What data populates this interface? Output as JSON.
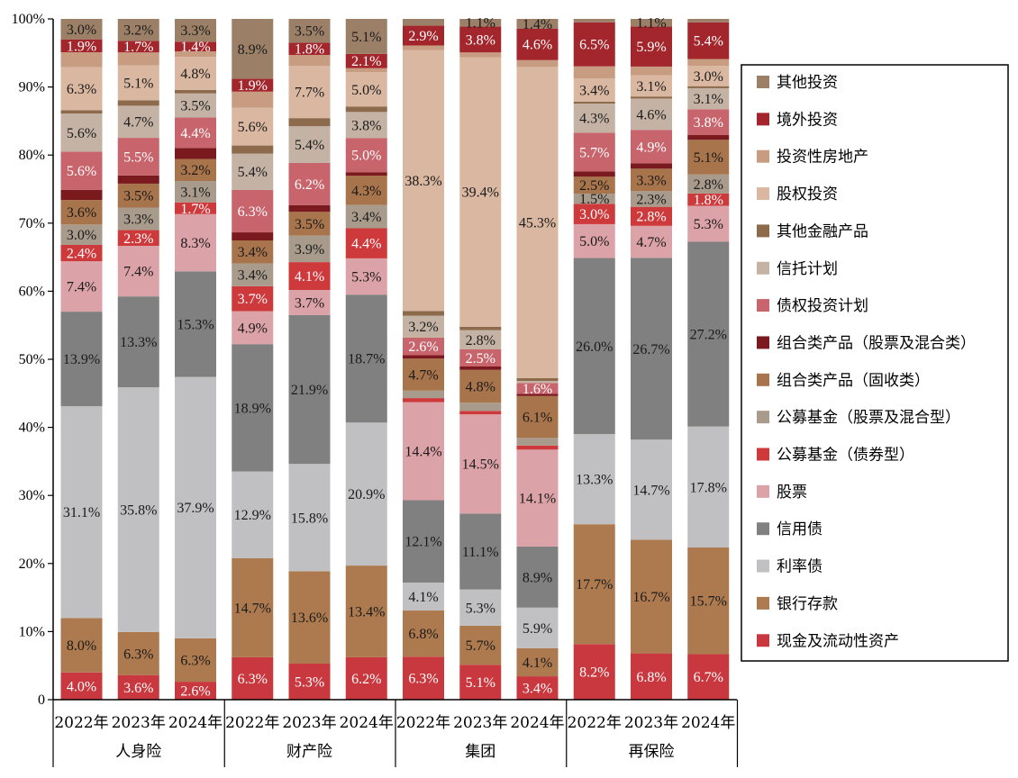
{
  "chart_data": {
    "type": "stacked-bar-100",
    "y_ticks": [
      "0",
      "10%",
      "20%",
      "30%",
      "40%",
      "50%",
      "60%",
      "70%",
      "80%",
      "90%",
      "100%"
    ],
    "ylim": [
      0,
      100
    ],
    "groups": [
      {
        "name": "人身险",
        "years": [
          "2022年",
          "2023年",
          "2024年"
        ]
      },
      {
        "name": "财产险",
        "years": [
          "2022年",
          "2023年",
          "2024年"
        ]
      },
      {
        "name": "集团",
        "years": [
          "2022年",
          "2023年",
          "2024年"
        ]
      },
      {
        "name": "再保险",
        "years": [
          "2022年",
          "2023年",
          "2024年"
        ]
      }
    ],
    "legend_position": "right",
    "series": [
      {
        "name": "现金及流动性资产",
        "color": "#C8383E",
        "values": [
          4.0,
          3.6,
          2.6,
          6.3,
          5.3,
          6.2,
          6.3,
          5.1,
          3.4,
          8.2,
          6.8,
          6.7
        ],
        "labels": [
          "4.0%",
          "3.6%",
          "2.6%",
          "6.3%",
          "5.3%",
          "6.2%",
          "6.3%",
          "5.1%",
          "3.4%",
          "8.2%",
          "6.8%",
          "6.7%"
        ]
      },
      {
        "name": "银行存款",
        "color": "#AD7A4F",
        "values": [
          8.0,
          6.3,
          6.3,
          14.7,
          13.6,
          13.4,
          6.8,
          5.7,
          4.1,
          17.7,
          16.7,
          15.7
        ],
        "labels": [
          "8.0%",
          "6.3%",
          "6.3%",
          "14.7%",
          "13.6%",
          "13.4%",
          "6.8%",
          "5.7%",
          "4.1%",
          "17.7%",
          "16.7%",
          "15.7%"
        ]
      },
      {
        "name": "利率债",
        "color": "#C0C0C2",
        "values": [
          31.1,
          35.8,
          37.9,
          12.9,
          15.8,
          20.9,
          4.1,
          5.3,
          5.9,
          13.3,
          14.7,
          17.8
        ],
        "labels": [
          "31.1%",
          "35.8%",
          "37.9%",
          "12.9%",
          "15.8%",
          "20.9%",
          "4.1%",
          "5.3%",
          "5.9%",
          "13.3%",
          "14.7%",
          "17.8%"
        ]
      },
      {
        "name": "信用债",
        "color": "#808080",
        "values": [
          13.9,
          13.3,
          15.3,
          18.9,
          21.9,
          18.7,
          12.1,
          11.1,
          8.9,
          26.0,
          26.7,
          27.2
        ],
        "labels": [
          "13.9%",
          "13.3%",
          "15.3%",
          "18.9%",
          "21.9%",
          "18.7%",
          "12.1%",
          "11.1%",
          "8.9%",
          "26.0%",
          "26.7%",
          "27.2%"
        ]
      },
      {
        "name": "股票",
        "color": "#DBA2A7",
        "values": [
          7.4,
          7.4,
          8.3,
          4.9,
          3.7,
          5.3,
          14.4,
          14.5,
          14.1,
          5.0,
          4.7,
          5.3
        ],
        "labels": [
          "7.4%",
          "7.4%",
          "8.3%",
          "4.9%",
          "3.7%",
          "5.3%",
          "14.4%",
          "14.5%",
          "14.1%",
          "5.0%",
          "4.7%",
          "5.3%"
        ]
      },
      {
        "name": "公募基金（债券型）",
        "color": "#CE3A3C",
        "values": [
          2.4,
          2.3,
          1.7,
          3.7,
          4.1,
          4.4,
          0.6,
          0.5,
          0.6,
          3.0,
          2.8,
          1.8
        ],
        "labels": [
          "2.4%",
          "2.3%",
          "1.7%",
          "3.7%",
          "4.1%",
          "4.4%",
          "",
          "",
          "",
          "3.0%",
          "2.8%",
          "1.8%"
        ]
      },
      {
        "name": "公募基金（股票及混合型）",
        "color": "#A89B8C",
        "values": [
          3.0,
          3.3,
          3.1,
          3.4,
          3.9,
          3.4,
          1.1,
          1.2,
          1.1,
          1.5,
          2.3,
          2.8
        ],
        "labels": [
          "3.0%",
          "3.3%",
          "3.1%",
          "3.4%",
          "3.9%",
          "3.4%",
          "",
          "",
          "",
          "1.5%",
          "2.3%",
          "2.8%"
        ]
      },
      {
        "name": "组合类产品（固收类）",
        "color": "#A8744B",
        "values": [
          3.6,
          3.5,
          3.2,
          3.4,
          3.5,
          4.3,
          4.7,
          4.8,
          6.1,
          2.5,
          3.3,
          5.1
        ],
        "labels": [
          "3.6%",
          "3.5%",
          "3.2%",
          "3.4%",
          "3.5%",
          "4.3%",
          "4.7%",
          "4.8%",
          "6.1%",
          "2.5%",
          "3.3%",
          "5.1%"
        ]
      },
      {
        "name": "组合类产品（股票及混合类）",
        "color": "#7A1A1E",
        "values": [
          1.5,
          1.2,
          1.6,
          1.2,
          1.0,
          0.5,
          0.5,
          0.5,
          0.3,
          0.8,
          0.8,
          0.7
        ],
        "labels": [
          "",
          "",
          "",
          "",
          "",
          "",
          "",
          "",
          "",
          "",
          "",
          ""
        ]
      },
      {
        "name": "债权投资计划",
        "color": "#C7646C",
        "values": [
          5.6,
          5.5,
          4.4,
          6.3,
          6.2,
          5.0,
          2.6,
          2.5,
          1.6,
          5.7,
          4.9,
          3.8
        ],
        "labels": [
          "5.6%",
          "5.5%",
          "4.4%",
          "6.3%",
          "6.2%",
          "5.0%",
          "2.6%",
          "2.5%",
          "1.6%",
          "5.7%",
          "4.9%",
          "3.8%"
        ]
      },
      {
        "name": "信托计划",
        "color": "#C4B3A4",
        "values": [
          5.6,
          4.7,
          3.5,
          5.4,
          5.4,
          3.8,
          3.2,
          2.8,
          0.3,
          4.3,
          4.6,
          3.1
        ],
        "labels": [
          "5.6%",
          "4.7%",
          "3.5%",
          "5.4%",
          "5.4%",
          "3.8%",
          "3.2%",
          "2.8%",
          "",
          "4.3%",
          "4.6%",
          "3.1%"
        ]
      },
      {
        "name": "其他金融产品",
        "color": "#8E6A4C",
        "values": [
          0.5,
          0.8,
          0.5,
          1.2,
          1.2,
          0.8,
          0.7,
          0.5,
          0.4,
          0.3,
          0.3,
          0.3
        ],
        "labels": [
          "",
          "",
          "",
          "",
          "",
          "",
          "",
          "",
          "",
          "",
          "",
          ""
        ]
      },
      {
        "name": "股权投资",
        "color": "#D9B7A0",
        "values": [
          6.3,
          5.1,
          4.8,
          5.6,
          7.7,
          5.0,
          38.3,
          39.4,
          45.3,
          3.4,
          3.1,
          3.0
        ],
        "labels": [
          "6.3%",
          "5.1%",
          "4.8%",
          "5.6%",
          "7.7%",
          "5.0%",
          "38.3%",
          "39.4%",
          "45.3%",
          "3.4%",
          "3.1%",
          "3.0%"
        ]
      },
      {
        "name": "投资性房地产",
        "color": "#C89C80",
        "values": [
          2.2,
          1.9,
          0.8,
          2.4,
          1.6,
          0.6,
          0.7,
          0.7,
          1.0,
          1.8,
          1.3,
          1.0
        ],
        "labels": [
          "",
          "",
          "",
          "",
          "",
          "",
          "",
          "",
          "",
          "",
          "",
          ""
        ]
      },
      {
        "name": "境外投资",
        "color": "#A2262C",
        "values": [
          1.9,
          1.7,
          1.4,
          1.9,
          1.8,
          2.1,
          2.9,
          3.8,
          4.6,
          6.5,
          5.9,
          5.4
        ],
        "labels": [
          "1.9%",
          "1.7%",
          "1.4%",
          "1.9%",
          "1.8%",
          "2.1%",
          "2.9%",
          "3.8%",
          "4.6%",
          "6.5%",
          "5.9%",
          "5.4%"
        ]
      },
      {
        "name": "其他投资",
        "color": "#9B8067",
        "values": [
          3.0,
          3.2,
          3.3,
          8.9,
          3.5,
          5.1,
          1.0,
          1.1,
          1.4,
          0.5,
          1.1,
          0.5
        ],
        "labels": [
          "3.0%",
          "3.2%",
          "3.3%",
          "8.9%",
          "3.5%",
          "5.1%",
          "",
          "1.1%",
          "1.4%",
          "",
          "1.1%",
          ""
        ]
      }
    ]
  }
}
